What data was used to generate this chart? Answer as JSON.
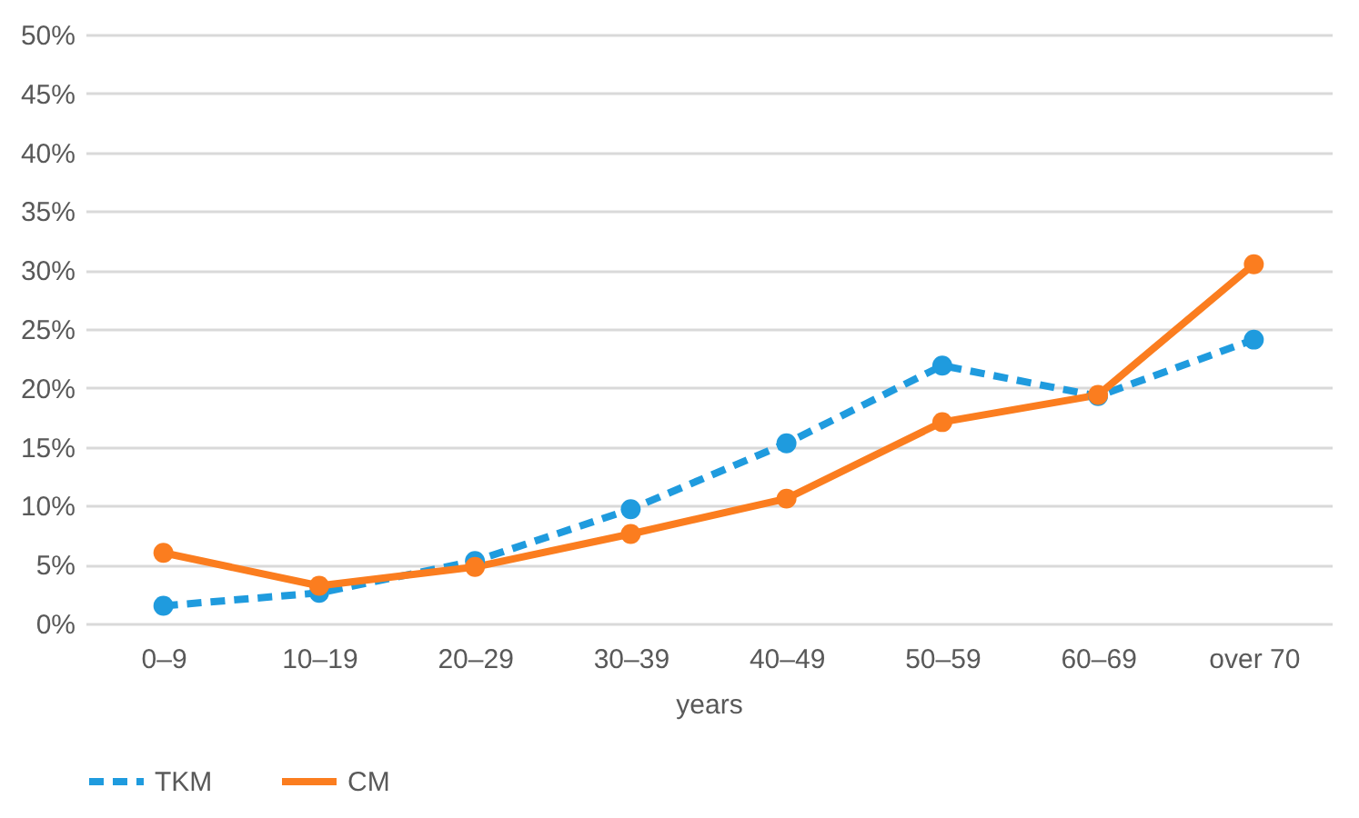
{
  "chart_data": {
    "type": "line",
    "xlabel": "years",
    "categories": [
      "0–9",
      "10–19",
      "20–29",
      "30–39",
      "40–49",
      "50–59",
      "60–69",
      "over 70"
    ],
    "series": [
      {
        "name": "TKM",
        "color": "#1f9bde",
        "line_style": "dashed",
        "values": [
          1.5,
          2.6,
          5.3,
          9.7,
          15.3,
          21.9,
          19.3,
          24.1
        ]
      },
      {
        "name": "CM",
        "color": "#fb7d1f",
        "line_style": "solid",
        "values": [
          6.0,
          3.2,
          4.8,
          7.6,
          10.6,
          17.1,
          19.4,
          30.5
        ]
      }
    ],
    "ylim": [
      0,
      50
    ],
    "yticks": [
      {
        "value": 0,
        "label": "0%"
      },
      {
        "value": 5,
        "label": "5%"
      },
      {
        "value": 10,
        "label": "10%"
      },
      {
        "value": 15,
        "label": "15%"
      },
      {
        "value": 20,
        "label": "20%"
      },
      {
        "value": 25,
        "label": "25%"
      },
      {
        "value": 30,
        "label": "30%"
      },
      {
        "value": 35,
        "label": "35%"
      },
      {
        "value": 40,
        "label": "40%"
      },
      {
        "value": 45,
        "label": "45%"
      },
      {
        "value": 50,
        "label": "50%"
      }
    ],
    "grid": "y",
    "legend": "bottom",
    "marker": "circle"
  }
}
